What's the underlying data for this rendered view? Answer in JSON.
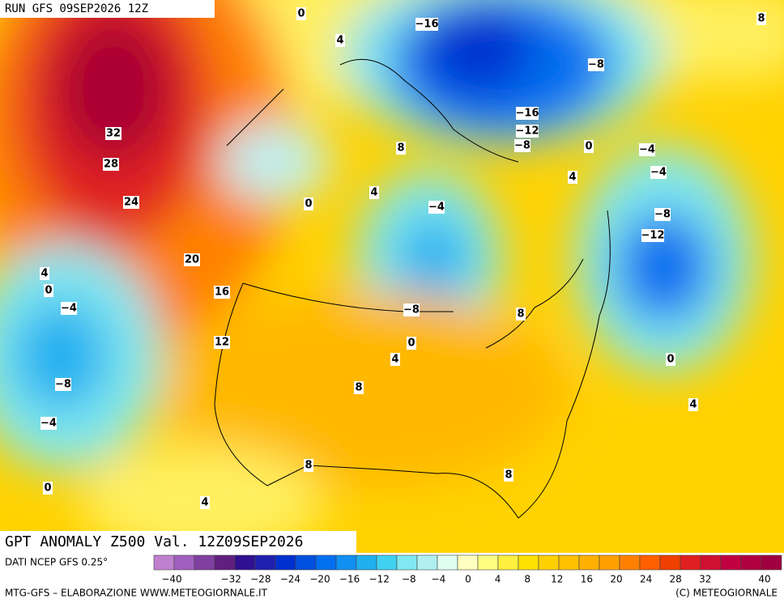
{
  "header": "RUN GFS 09SEP2026 12Z",
  "title": "GPT ANOMALY Z500 Val. 12Z09SEP2026",
  "source": "DATI NCEP GFS 0.25°",
  "credit_left": "MTG-GFS – ELABORAZIONE WWW.METEOGIORNALE.IT",
  "credit_right": "(C) METEOGIORNALE",
  "contour_labels": [
    "0",
    "4",
    "−16",
    "8",
    "−8",
    "32",
    "28",
    "24",
    "−16",
    "−12",
    "−8",
    "0",
    "−4",
    "8",
    "−4",
    "4",
    "4",
    "0",
    "−4",
    "−8",
    "−12",
    "20",
    "4",
    "0",
    "16",
    "−4",
    "−8",
    "8",
    "12",
    "0",
    "4",
    "0",
    "8",
    "−8",
    "4",
    "−4",
    "8",
    "8",
    "0",
    "4"
  ],
  "colorbar": {
    "colors": [
      "#c080d0",
      "#a060c0",
      "#8040a0",
      "#602080",
      "#301090",
      "#2020b0",
      "#0030d0",
      "#0050e0",
      "#0070f0",
      "#1090f0",
      "#20b0f0",
      "#40d0f0",
      "#80e8f0",
      "#b0f0f0",
      "#e0fff0",
      "#ffffc0",
      "#ffff80",
      "#fff040",
      "#ffe000",
      "#ffd000",
      "#ffc000",
      "#ffb000",
      "#ffa000",
      "#ff8000",
      "#ff6000",
      "#f04000",
      "#e02020",
      "#d01030",
      "#c00040",
      "#b00040",
      "#a00040"
    ],
    "labels": [
      {
        "value": -40,
        "label": "−40"
      },
      {
        "value": -32,
        "label": "−32"
      },
      {
        "value": -28,
        "label": "−28"
      },
      {
        "value": -24,
        "label": "−24"
      },
      {
        "value": -20,
        "label": "−20"
      },
      {
        "value": -16,
        "label": "−16"
      },
      {
        "value": -12,
        "label": "−12"
      },
      {
        "value": -8,
        "label": "−8"
      },
      {
        "value": -4,
        "label": "−4"
      },
      0,
      4,
      8,
      12,
      16,
      20,
      24,
      28,
      32,
      40
    ]
  }
}
